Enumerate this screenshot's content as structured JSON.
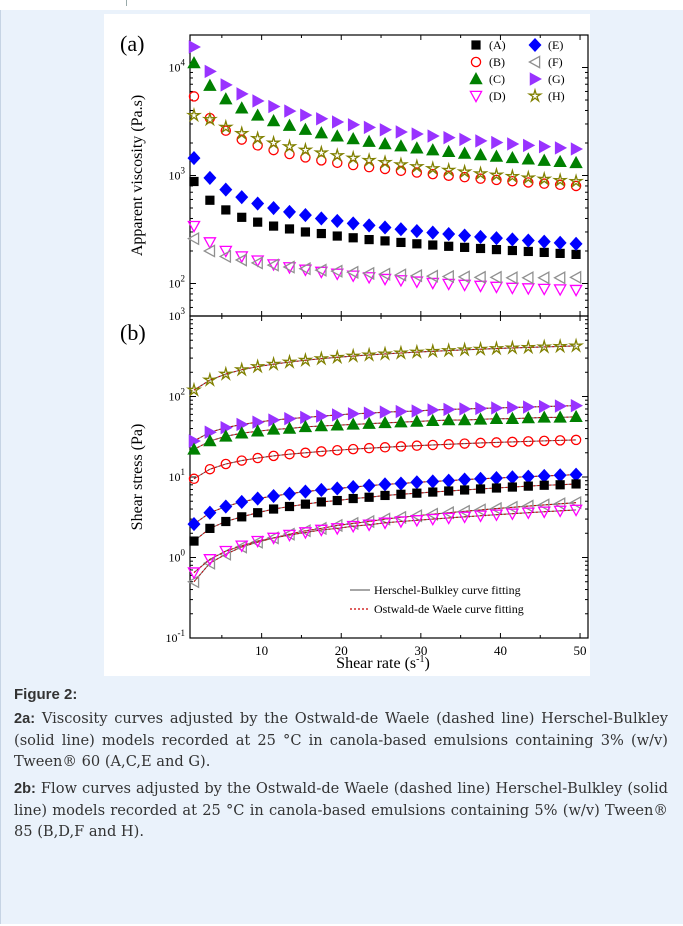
{
  "caption": {
    "figure_label": "Figure 2",
    "figure_colon": ":",
    "para_a_label": "2a:",
    "para_a_text": " Viscosity curves adjusted by the Ostwald-de Waele (dashed line) Herschel-Bulkley (solid line) models recorded at 25 °C in canola-based emulsions containing 3% (w/v) Tween® 60 (A,C,E and G).",
    "para_b_label": "2b:",
    "para_b_text": " Flow curves adjusted by the Ostwald-de Waele (dashed line) Herschel-Bulkley (solid line) models recorded at 25 °C in canola-based emulsions containing 5% (w/v) Tween® 85 (B,D,F and H)."
  },
  "colors": {
    "A": "#000000",
    "B": "#ff0000",
    "C": "#008000",
    "D": "#ff00ff",
    "E": "#0000ff",
    "F": "#909090",
    "G": "#9933ff",
    "H": "#808000",
    "fit_hb": "#707070",
    "fit_ow": "#cc0000"
  },
  "chart_data": [
    {
      "type": "scatter",
      "panel_label": "(a)",
      "ylabel": "Apparent viscosity (Pa.s)",
      "xlim": [
        1,
        51
      ],
      "ylim": [
        50,
        20000
      ],
      "yscale": "log",
      "yticks": [
        {
          "value": 100,
          "base": "10",
          "exp": "2"
        },
        {
          "value": 1000,
          "base": "10",
          "exp": "3"
        },
        {
          "value": 10000,
          "base": "10",
          "exp": "4"
        }
      ],
      "legend": [
        "(A)",
        "(E)",
        "(B)",
        "(F)",
        "(C)",
        "(G)",
        "(D)",
        "(H)"
      ],
      "legend_position": "top-right",
      "x": [
        1.5,
        3.5,
        5.5,
        7.5,
        9.5,
        11.5,
        13.5,
        15.5,
        17.5,
        19.5,
        21.5,
        23.5,
        25.5,
        27.5,
        29.5,
        31.5,
        33.5,
        35.5,
        37.5,
        39.5,
        41.5,
        43.5,
        45.5,
        47.5,
        49.5
      ],
      "series": [
        {
          "name": "(A)",
          "key": "A",
          "marker": "square",
          "values": [
            880,
            590,
            480,
            410,
            370,
            340,
            320,
            300,
            290,
            275,
            265,
            255,
            248,
            240,
            233,
            227,
            221,
            216,
            211,
            206,
            202,
            198,
            194,
            190,
            186
          ]
        },
        {
          "name": "(B)",
          "key": "B",
          "marker": "circle-open",
          "values": [
            5400,
            3400,
            2600,
            2150,
            1900,
            1720,
            1580,
            1470,
            1380,
            1310,
            1250,
            1195,
            1150,
            1105,
            1065,
            1030,
            995,
            965,
            935,
            910,
            885,
            862,
            840,
            820,
            800
          ]
        },
        {
          "name": "(C)",
          "key": "C",
          "marker": "triangle-up",
          "values": [
            11000,
            6800,
            5100,
            4200,
            3600,
            3200,
            2900,
            2660,
            2470,
            2310,
            2180,
            2060,
            1960,
            1870,
            1790,
            1720,
            1660,
            1600,
            1550,
            1500,
            1455,
            1415,
            1375,
            1340,
            1310
          ]
        },
        {
          "name": "(D)",
          "key": "D",
          "marker": "triangle-down-open",
          "values": [
            340,
            240,
            200,
            178,
            163,
            150,
            141,
            134,
            128,
            123,
            118,
            114,
            110,
            107,
            104,
            101,
            99,
            97,
            95,
            93,
            91,
            90,
            89,
            88,
            87
          ]
        },
        {
          "name": "(E)",
          "key": "E",
          "marker": "diamond",
          "values": [
            1450,
            950,
            740,
            630,
            550,
            500,
            460,
            430,
            400,
            380,
            360,
            345,
            330,
            318,
            306,
            296,
            287,
            278,
            270,
            263,
            256,
            250,
            244,
            238,
            233
          ]
        },
        {
          "name": "(F)",
          "key": "F",
          "marker": "triangle-left-open",
          "values": [
            260,
            200,
            178,
            165,
            155,
            148,
            142,
            137,
            133,
            130,
            127,
            124,
            122,
            120,
            118,
            117,
            116,
            115,
            114,
            114,
            113,
            113,
            113,
            113,
            114
          ]
        },
        {
          "name": "(G)",
          "key": "G",
          "marker": "triangle-right",
          "values": [
            15500,
            9200,
            6900,
            5700,
            4900,
            4350,
            3950,
            3620,
            3350,
            3130,
            2950,
            2790,
            2650,
            2530,
            2420,
            2320,
            2240,
            2160,
            2090,
            2020,
            1960,
            1900,
            1850,
            1800,
            1760
          ]
        },
        {
          "name": "(H)",
          "key": "H",
          "marker": "star-open",
          "values": [
            3600,
            3300,
            2800,
            2450,
            2200,
            2000,
            1850,
            1720,
            1620,
            1530,
            1450,
            1380,
            1320,
            1260,
            1210,
            1160,
            1120,
            1080,
            1040,
            1010,
            980,
            950,
            925,
            900,
            880
          ]
        }
      ]
    },
    {
      "type": "scatter",
      "panel_label": "(b)",
      "xlabel": "Shear rate",
      "xlabel_unit_base": "(s",
      "xlabel_unit_exp": "-1",
      "xlabel_unit_close": ")",
      "ylabel": "Shear stress (Pa)",
      "xlim": [
        1,
        51
      ],
      "ylim": [
        0.1,
        1000
      ],
      "yscale": "log",
      "xticks": [
        "10",
        "20",
        "30",
        "40",
        "50"
      ],
      "xtick_values": [
        10,
        20,
        30,
        40,
        50
      ],
      "yticks": [
        {
          "value": 0.1,
          "base": "10",
          "exp": "-1"
        },
        {
          "value": 1,
          "base": "10",
          "exp": "0"
        },
        {
          "value": 10,
          "base": "10",
          "exp": "1"
        },
        {
          "value": 100,
          "base": "10",
          "exp": "2"
        },
        {
          "value": 1000,
          "base": "10",
          "exp": "3"
        }
      ],
      "fit_legend": [
        {
          "label": "Herschel-Bulkley curve fitting",
          "style": "solid"
        },
        {
          "label": "Ostwald-de Waele curve fitting",
          "style": "dotted"
        }
      ],
      "legend_position": "bottom-right",
      "x": [
        1.5,
        3.5,
        5.5,
        7.5,
        9.5,
        11.5,
        13.5,
        15.5,
        17.5,
        19.5,
        21.5,
        23.5,
        25.5,
        27.5,
        29.5,
        31.5,
        33.5,
        35.5,
        37.5,
        39.5,
        41.5,
        43.5,
        45.5,
        47.5,
        49.5
      ],
      "series": [
        {
          "key": "H",
          "marker": "star-open",
          "values": [
            120,
            160,
            190,
            215,
            235,
            252,
            268,
            282,
            295,
            307,
            318,
            328,
            338,
            347,
            356,
            364,
            372,
            380,
            387,
            394,
            401,
            407,
            413,
            419,
            425
          ]
        },
        {
          "key": "G",
          "marker": "triangle-right",
          "values": [
            28,
            36,
            41,
            45,
            48,
            51,
            53,
            55,
            57,
            59,
            61,
            62,
            64,
            65,
            66,
            68,
            69,
            70,
            71,
            72,
            73,
            74,
            75,
            76,
            77
          ]
        },
        {
          "key": "C",
          "marker": "triangle-up",
          "values": [
            22,
            28,
            32,
            35,
            37,
            39,
            40,
            42,
            43,
            44,
            45,
            46,
            47,
            48,
            49,
            50,
            51,
            51,
            52,
            53,
            53,
            54,
            55,
            55,
            56
          ]
        },
        {
          "key": "B",
          "marker": "circle-open",
          "values": [
            9.5,
            12.5,
            14.5,
            16,
            17.2,
            18.3,
            19.2,
            20,
            20.8,
            21.5,
            22.2,
            22.8,
            23.4,
            24,
            24.5,
            25,
            25.5,
            26,
            26.5,
            26.9,
            27.3,
            27.7,
            28.1,
            28.5,
            28.9
          ]
        },
        {
          "key": "E",
          "marker": "diamond",
          "values": [
            2.6,
            3.6,
            4.3,
            4.9,
            5.4,
            5.8,
            6.2,
            6.6,
            6.9,
            7.2,
            7.5,
            7.8,
            8.1,
            8.3,
            8.6,
            8.8,
            9.0,
            9.3,
            9.5,
            9.7,
            9.9,
            10.1,
            10.3,
            10.5,
            10.7
          ]
        },
        {
          "key": "A",
          "marker": "square",
          "values": [
            1.6,
            2.3,
            2.8,
            3.2,
            3.6,
            4.0,
            4.3,
            4.6,
            4.9,
            5.1,
            5.4,
            5.6,
            5.9,
            6.1,
            6.3,
            6.5,
            6.7,
            6.9,
            7.1,
            7.3,
            7.5,
            7.7,
            7.9,
            8.0,
            8.2
          ]
        },
        {
          "key": "F",
          "marker": "triangle-left-open",
          "values": [
            0.5,
            0.85,
            1.1,
            1.35,
            1.55,
            1.75,
            1.95,
            2.15,
            2.3,
            2.5,
            2.65,
            2.8,
            3.0,
            3.15,
            3.3,
            3.45,
            3.6,
            3.75,
            3.9,
            4.05,
            4.2,
            4.35,
            4.5,
            4.65,
            4.8
          ]
        },
        {
          "key": "D",
          "marker": "triangle-down-open",
          "values": [
            0.65,
            0.95,
            1.2,
            1.4,
            1.6,
            1.75,
            1.9,
            2.05,
            2.2,
            2.3,
            2.45,
            2.55,
            2.7,
            2.8,
            2.9,
            3.0,
            3.1,
            3.2,
            3.3,
            3.4,
            3.5,
            3.6,
            3.7,
            3.8,
            3.9
          ]
        }
      ]
    }
  ]
}
